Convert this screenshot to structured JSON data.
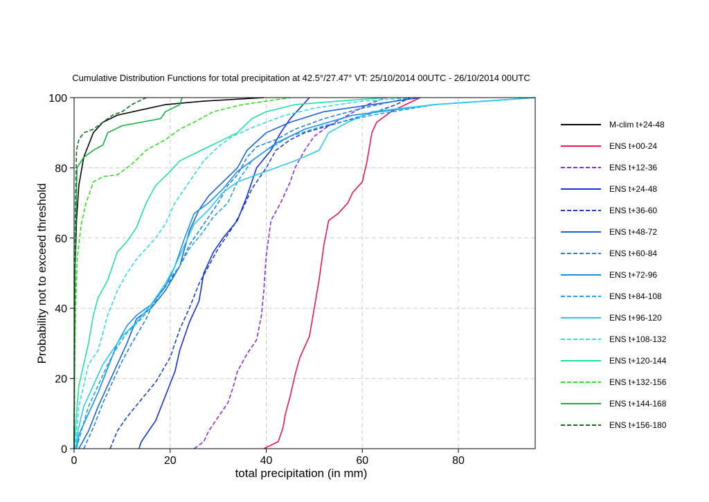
{
  "chart_data": {
    "type": "line",
    "title": "Cumulative Distribution Functions for total precipitation at 42.5°/27.47° VT: 25/10/2014 00UTC - 26/10/2014 00UTC",
    "xlabel": "total precipitation  (in mm)",
    "ylabel": "Probability not to exceed threshold",
    "xlim": [
      0,
      96
    ],
    "ylim": [
      0,
      100
    ],
    "x_ticks": [
      "0",
      "20",
      "40",
      "60",
      "80"
    ],
    "y_ticks": [
      "0",
      "20",
      "40",
      "60",
      "80",
      "100"
    ],
    "grid": true,
    "legend_position": "right",
    "series": [
      {
        "name": "M-clim t+24-48",
        "color": "#000000",
        "dash": "solid",
        "points": [
          [
            0,
            0
          ],
          [
            0.2,
            50
          ],
          [
            0.5,
            65
          ],
          [
            1,
            75
          ],
          [
            2,
            83
          ],
          [
            4,
            90
          ],
          [
            6,
            93
          ],
          [
            9,
            95
          ],
          [
            14,
            96.5
          ],
          [
            19,
            98
          ],
          [
            27,
            99
          ],
          [
            39.5,
            100
          ]
        ]
      },
      {
        "name": "ENS t+00-24",
        "color": "#e8154e",
        "dash": "solid",
        "points": [
          [
            39.5,
            0
          ],
          [
            42.5,
            2
          ],
          [
            43.5,
            6
          ],
          [
            44,
            10
          ],
          [
            45,
            15
          ],
          [
            46,
            21
          ],
          [
            47,
            26
          ],
          [
            48,
            29
          ],
          [
            49,
            32
          ],
          [
            50,
            40
          ],
          [
            51,
            48
          ],
          [
            52,
            58
          ],
          [
            53,
            65
          ],
          [
            55,
            67
          ],
          [
            57,
            70
          ],
          [
            58,
            73
          ],
          [
            60,
            76
          ],
          [
            61,
            82
          ],
          [
            62,
            90
          ],
          [
            63,
            93
          ],
          [
            66,
            96
          ],
          [
            69,
            98
          ],
          [
            72,
            100
          ]
        ]
      },
      {
        "name": "ENS t+12-36",
        "color": "#8a2be2",
        "dash": "dashed",
        "points": [
          [
            25,
            0
          ],
          [
            27,
            2
          ],
          [
            28,
            5
          ],
          [
            30,
            9
          ],
          [
            32,
            13
          ],
          [
            33,
            17
          ],
          [
            34,
            22
          ],
          [
            36,
            27
          ],
          [
            38,
            31
          ],
          [
            39,
            38
          ],
          [
            39.5,
            45
          ],
          [
            40,
            55
          ],
          [
            41,
            65
          ],
          [
            43,
            70
          ],
          [
            45,
            76
          ],
          [
            46,
            80
          ],
          [
            48,
            85
          ],
          [
            50,
            89
          ],
          [
            53,
            92
          ],
          [
            57,
            95
          ],
          [
            61,
            98
          ],
          [
            65,
            100
          ]
        ]
      },
      {
        "name": "ENS t+24-48",
        "color": "#1030d8",
        "dash": "solid",
        "points": [
          [
            13.5,
            0
          ],
          [
            14,
            2
          ],
          [
            17,
            8
          ],
          [
            19,
            15
          ],
          [
            21,
            22
          ],
          [
            22,
            28
          ],
          [
            24,
            36
          ],
          [
            26,
            42
          ],
          [
            27,
            50
          ],
          [
            29,
            56
          ],
          [
            31,
            60
          ],
          [
            34,
            65
          ],
          [
            36,
            72
          ],
          [
            38,
            80
          ],
          [
            41,
            85
          ],
          [
            43,
            90
          ],
          [
            45,
            94
          ],
          [
            47,
            97
          ],
          [
            49,
            100
          ]
        ]
      },
      {
        "name": "ENS t+36-60",
        "color": "#1840d0",
        "dash": "dashed",
        "points": [
          [
            7.5,
            0
          ],
          [
            9,
            5
          ],
          [
            11,
            9
          ],
          [
            14,
            14
          ],
          [
            17,
            19
          ],
          [
            20,
            26
          ],
          [
            22,
            34
          ],
          [
            24,
            40
          ],
          [
            26,
            47
          ],
          [
            28,
            52
          ],
          [
            30,
            57
          ],
          [
            33,
            63
          ],
          [
            35,
            68
          ],
          [
            37,
            74
          ],
          [
            40,
            80
          ],
          [
            42,
            85
          ],
          [
            45,
            88
          ],
          [
            48,
            90
          ],
          [
            53,
            92
          ],
          [
            58,
            94
          ],
          [
            63,
            96
          ],
          [
            67,
            98
          ],
          [
            70,
            100
          ]
        ]
      },
      {
        "name": "ENS t+48-72",
        "color": "#1e60d8",
        "dash": "solid",
        "points": [
          [
            1,
            0
          ],
          [
            3,
            5
          ],
          [
            5,
            12
          ],
          [
            7,
            18
          ],
          [
            9,
            24
          ],
          [
            11,
            30
          ],
          [
            13,
            37
          ],
          [
            16,
            40
          ],
          [
            19,
            45
          ],
          [
            22,
            52
          ],
          [
            24,
            62
          ],
          [
            26,
            68
          ],
          [
            28,
            72
          ],
          [
            31,
            76
          ],
          [
            34,
            80
          ],
          [
            36,
            85
          ],
          [
            40,
            90
          ],
          [
            45,
            93
          ],
          [
            52,
            96
          ],
          [
            62,
            98
          ],
          [
            72,
            100
          ]
        ]
      },
      {
        "name": "ENS t+60-84",
        "color": "#2080e0",
        "dash": "dashed",
        "points": [
          [
            2,
            0
          ],
          [
            4,
            6
          ],
          [
            6,
            13
          ],
          [
            8,
            19
          ],
          [
            10,
            25
          ],
          [
            12,
            30
          ],
          [
            15,
            37
          ],
          [
            17,
            43
          ],
          [
            20,
            48
          ],
          [
            22,
            52
          ],
          [
            24,
            58
          ],
          [
            26,
            62
          ],
          [
            28,
            66
          ],
          [
            30,
            70
          ],
          [
            32,
            75
          ],
          [
            34,
            78
          ],
          [
            36,
            83
          ],
          [
            38,
            86
          ],
          [
            42,
            88
          ],
          [
            46,
            91
          ],
          [
            52,
            94
          ],
          [
            60,
            97
          ],
          [
            70,
            100
          ]
        ]
      },
      {
        "name": "ENS t+72-96",
        "color": "#1890e8",
        "dash": "solid",
        "points": [
          [
            0.5,
            0
          ],
          [
            1,
            4
          ],
          [
            3,
            10
          ],
          [
            5,
            16
          ],
          [
            7,
            23
          ],
          [
            9,
            30
          ],
          [
            11,
            35
          ],
          [
            13,
            38
          ],
          [
            16,
            41
          ],
          [
            19,
            46
          ],
          [
            21,
            52
          ],
          [
            23,
            60
          ],
          [
            25,
            67
          ],
          [
            28,
            70
          ],
          [
            31,
            74
          ],
          [
            34,
            79
          ],
          [
            38,
            83
          ],
          [
            42,
            87
          ],
          [
            48,
            91
          ],
          [
            58,
            95
          ],
          [
            75,
            98
          ],
          [
            96,
            100
          ]
        ]
      },
      {
        "name": "ENS t+84-108",
        "color": "#20a0e8",
        "dash": "dashed",
        "points": [
          [
            0.5,
            0
          ],
          [
            1.5,
            5
          ],
          [
            3,
            12
          ],
          [
            5,
            18
          ],
          [
            7,
            24
          ],
          [
            9,
            29
          ],
          [
            11,
            33
          ],
          [
            14,
            37
          ],
          [
            17,
            42
          ],
          [
            19,
            47
          ],
          [
            22,
            52
          ],
          [
            24,
            57
          ],
          [
            27,
            62
          ],
          [
            29,
            66
          ],
          [
            32,
            70
          ],
          [
            34,
            76
          ],
          [
            37,
            82
          ],
          [
            40,
            85
          ],
          [
            45,
            89
          ],
          [
            52,
            92
          ],
          [
            62,
            95
          ],
          [
            75,
            98
          ],
          [
            96,
            100
          ]
        ]
      },
      {
        "name": "ENS t+96-120",
        "color": "#28c8f0",
        "dash": "solid",
        "points": [
          [
            0.3,
            0
          ],
          [
            0.8,
            5
          ],
          [
            2,
            12
          ],
          [
            4,
            18
          ],
          [
            6,
            24
          ],
          [
            8,
            28
          ],
          [
            10,
            32
          ],
          [
            13,
            36
          ],
          [
            16,
            41
          ],
          [
            19,
            47
          ],
          [
            21,
            52
          ],
          [
            23,
            58
          ],
          [
            25,
            64
          ],
          [
            28,
            68
          ],
          [
            31,
            73
          ],
          [
            34,
            76
          ],
          [
            38,
            78
          ],
          [
            42,
            80
          ],
          [
            46,
            82
          ],
          [
            51,
            85
          ],
          [
            53,
            90
          ],
          [
            57,
            93
          ],
          [
            62,
            96
          ],
          [
            75,
            98
          ],
          [
            96,
            100
          ]
        ]
      },
      {
        "name": "ENS t+108-132",
        "color": "#30d8f0",
        "dash": "dashed",
        "points": [
          [
            0.2,
            0
          ],
          [
            0.5,
            5
          ],
          [
            1,
            12
          ],
          [
            2,
            18
          ],
          [
            3,
            24
          ],
          [
            5,
            28
          ],
          [
            7,
            38
          ],
          [
            9,
            45
          ],
          [
            11,
            50
          ],
          [
            13,
            54
          ],
          [
            15,
            57
          ],
          [
            17,
            60
          ],
          [
            19,
            64
          ],
          [
            21,
            70
          ],
          [
            23,
            74
          ],
          [
            25,
            78
          ],
          [
            27,
            82
          ],
          [
            30,
            86
          ],
          [
            33,
            89
          ],
          [
            38,
            92
          ],
          [
            44,
            95
          ],
          [
            50,
            97
          ],
          [
            60,
            99
          ],
          [
            70,
            100
          ]
        ]
      },
      {
        "name": "ENS t+120-144",
        "color": "#20e0a0",
        "dash": "solid",
        "points": [
          [
            0,
            0
          ],
          [
            0.5,
            10
          ],
          [
            1,
            18
          ],
          [
            2,
            24
          ],
          [
            3,
            30
          ],
          [
            4,
            38
          ],
          [
            5,
            43
          ],
          [
            7,
            48
          ],
          [
            9,
            56
          ],
          [
            11,
            59
          ],
          [
            13,
            63
          ],
          [
            15,
            70
          ],
          [
            17,
            75
          ],
          [
            20,
            79
          ],
          [
            22,
            82
          ],
          [
            25,
            84
          ],
          [
            28,
            86
          ],
          [
            31,
            88
          ],
          [
            34,
            90
          ],
          [
            37,
            94
          ],
          [
            40,
            96
          ],
          [
            46,
            98
          ],
          [
            55,
            99
          ],
          [
            65,
            100
          ]
        ]
      },
      {
        "name": "ENS t+132-156",
        "color": "#30e020",
        "dash": "dashed",
        "points": [
          [
            0,
            0
          ],
          [
            0.1,
            20
          ],
          [
            0.3,
            40
          ],
          [
            0.7,
            55
          ],
          [
            1.5,
            64
          ],
          [
            2.5,
            70
          ],
          [
            4,
            76
          ],
          [
            6,
            77.5
          ],
          [
            9,
            78
          ],
          [
            12,
            81
          ],
          [
            15,
            85
          ],
          [
            19,
            88
          ],
          [
            22,
            91
          ],
          [
            25,
            93
          ],
          [
            29,
            96
          ],
          [
            35,
            98
          ],
          [
            40,
            99
          ],
          [
            45,
            100
          ]
        ]
      },
      {
        "name": "ENS t+144-168",
        "color": "#10b040",
        "dash": "solid",
        "points": [
          [
            0,
            0
          ],
          [
            0.1,
            30
          ],
          [
            0.3,
            60
          ],
          [
            0.6,
            80
          ],
          [
            2,
            83
          ],
          [
            4,
            85
          ],
          [
            6,
            86.5
          ],
          [
            7,
            90
          ],
          [
            10,
            92
          ],
          [
            14,
            93
          ],
          [
            18,
            94
          ],
          [
            19,
            96
          ],
          [
            22,
            98
          ],
          [
            22.5,
            100
          ]
        ]
      },
      {
        "name": "ENS t+156-180",
        "color": "#107020",
        "dash": "dashed",
        "points": [
          [
            0,
            0
          ],
          [
            0.1,
            40
          ],
          [
            0.3,
            70
          ],
          [
            0.5,
            85
          ],
          [
            1,
            88
          ],
          [
            2,
            90
          ],
          [
            4,
            91
          ],
          [
            6,
            93
          ],
          [
            8,
            95
          ],
          [
            10,
            96
          ],
          [
            12,
            98
          ],
          [
            15,
            100
          ]
        ]
      }
    ]
  }
}
